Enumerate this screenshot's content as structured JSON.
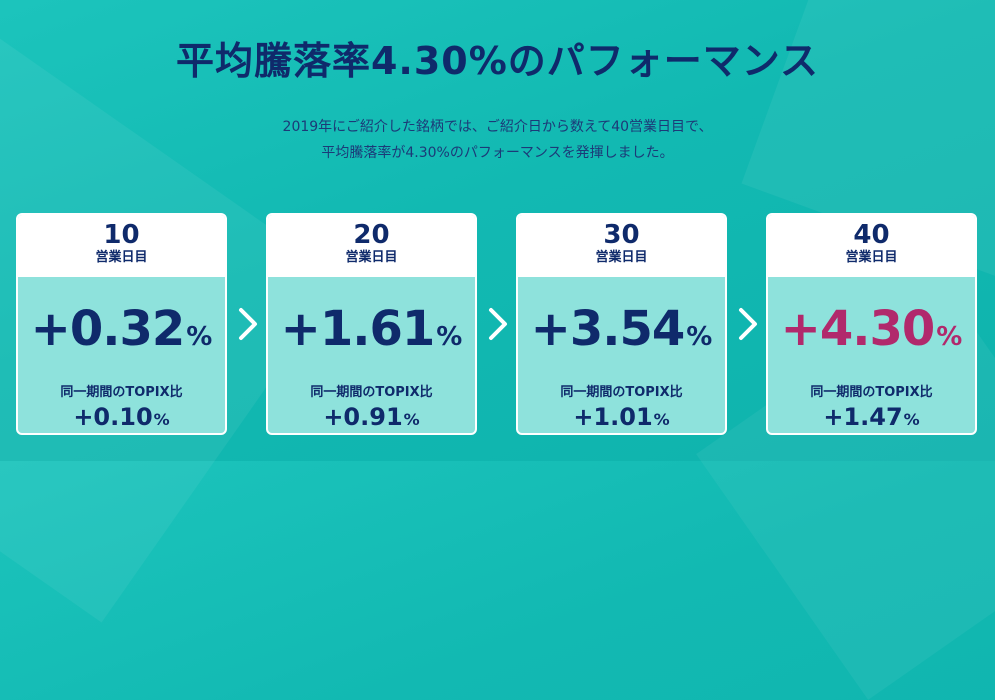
{
  "header": {
    "title": "平均騰落率4.30%のパフォーマンス",
    "subtitle_line1": "2019年にご紹介した銘柄では、ご紹介日から数えて40営業日目で、",
    "subtitle_line2": "平均騰落率が4.30%のパフォーマンスを発揮しました。"
  },
  "cards": [
    {
      "day": "10",
      "unit": "営業日目",
      "performance": "+0.32",
      "percent_sign": "%",
      "topix_label": "同一期間のTOPIX比",
      "topix_value": "+0.10",
      "topix_percent_sign": "%"
    },
    {
      "day": "20",
      "unit": "営業日目",
      "performance": "+1.61",
      "percent_sign": "%",
      "topix_label": "同一期間のTOPIX比",
      "topix_value": "+0.91",
      "topix_percent_sign": "%"
    },
    {
      "day": "30",
      "unit": "営業日目",
      "performance": "+3.54",
      "percent_sign": "%",
      "topix_label": "同一期間のTOPIX比",
      "topix_value": "+1.01",
      "topix_percent_sign": "%"
    },
    {
      "day": "40",
      "unit": "営業日目",
      "performance": "+4.30",
      "percent_sign": "%",
      "topix_label": "同一期間のTOPIX比",
      "topix_value": "+1.47",
      "topix_percent_sign": "%"
    }
  ],
  "colors": {
    "background": "#12b9b2",
    "navy": "#0f2a6b",
    "highlight": "#b1296c",
    "card_body": "#8ee2dc"
  },
  "icons": {
    "arrow": "chevron-right-icon"
  }
}
